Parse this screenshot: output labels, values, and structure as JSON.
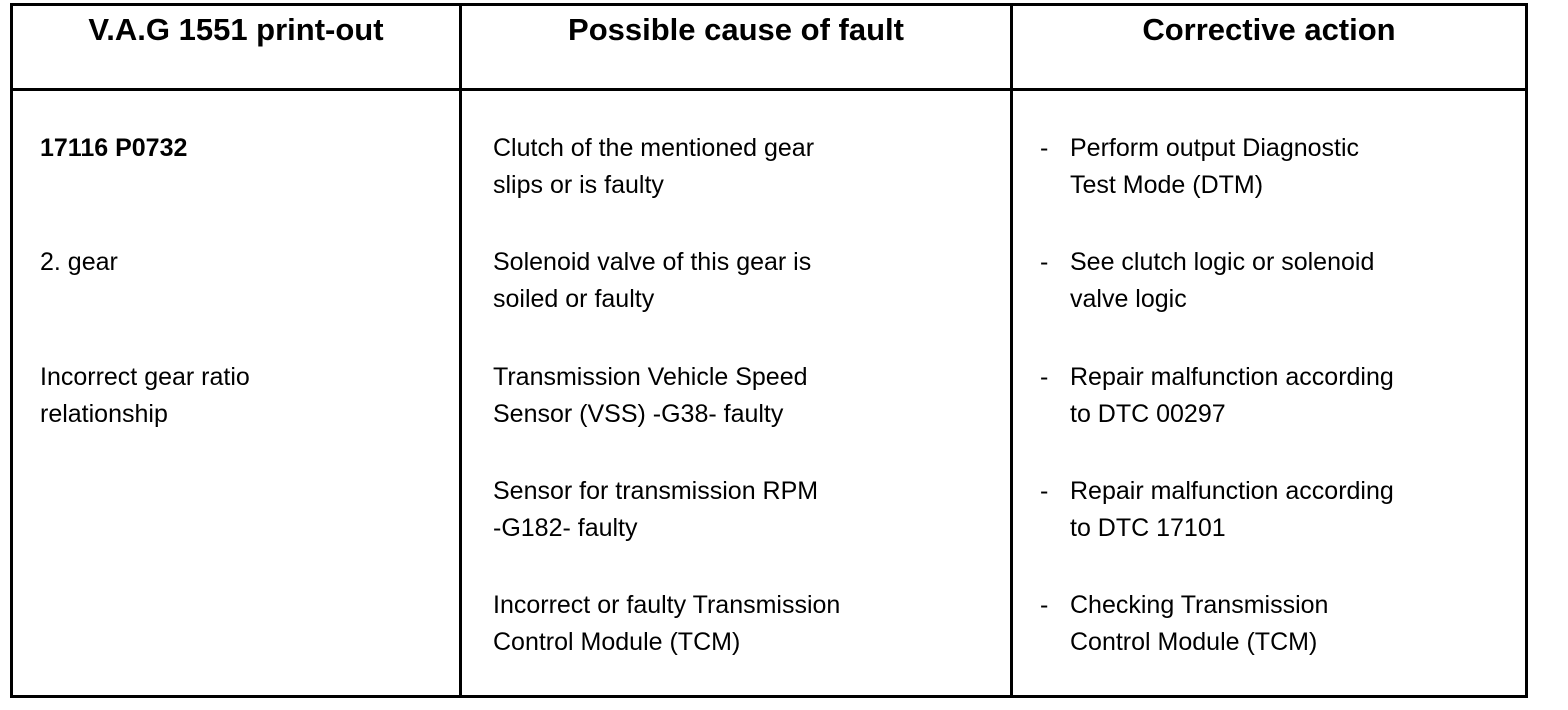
{
  "table": {
    "headers": [
      "V.A.G 1551 print-out",
      "Possible cause of fault",
      "Corrective action"
    ],
    "printout": [
      {
        "lines": [
          "17116 P0732"
        ],
        "bold": true
      },
      {
        "lines": [
          "2. gear"
        ]
      },
      {
        "lines": [
          "Incorrect gear ratio",
          "relationship"
        ]
      }
    ],
    "causes": [
      [
        "Clutch of the mentioned gear",
        "slips or is faulty"
      ],
      [
        "Solenoid valve of this gear is",
        "soiled or faulty"
      ],
      [
        "Transmission Vehicle Speed",
        "Sensor (VSS) -G38- faulty"
      ],
      [
        "Sensor for transmission RPM",
        "-G182- faulty"
      ],
      [
        "Incorrect or faulty Transmission",
        "Control Module (TCM)"
      ]
    ],
    "actions_bullet": "-",
    "actions": [
      [
        "Perform output Diagnostic",
        "Test Mode (DTM)"
      ],
      [
        "See clutch logic or solenoid",
        "valve logic"
      ],
      [
        "Repair malfunction according",
        "to DTC 00297"
      ],
      [
        "Repair malfunction according",
        "to DTC 17101"
      ],
      [
        "Checking Transmission",
        "Control Module (TCM)"
      ]
    ]
  }
}
